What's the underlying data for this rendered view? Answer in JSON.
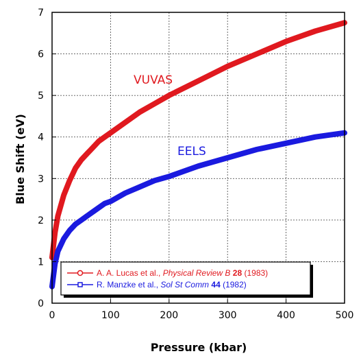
{
  "chart_data": {
    "type": "line",
    "title": "",
    "xlabel": "Pressure (kbar)",
    "ylabel": "Blue Shift (eV)",
    "xlim": [
      0,
      500
    ],
    "ylim": [
      0,
      7
    ],
    "xticks": [
      0,
      100,
      200,
      300,
      400,
      500
    ],
    "yticks": [
      0,
      1,
      2,
      3,
      4,
      5,
      6,
      7
    ],
    "grid": true,
    "legend_position": "bottom-left",
    "series": [
      {
        "name": "VUVAS",
        "color": "#e0191f",
        "x": [
          0,
          5,
          10,
          20,
          30,
          40,
          50,
          60,
          70,
          80,
          90,
          100,
          125,
          150,
          175,
          200,
          250,
          300,
          350,
          400,
          450,
          500
        ],
        "y": [
          1.1,
          1.7,
          2.1,
          2.6,
          2.95,
          3.25,
          3.45,
          3.6,
          3.75,
          3.9,
          4.0,
          4.1,
          4.35,
          4.6,
          4.8,
          5.0,
          5.35,
          5.7,
          6.0,
          6.3,
          6.55,
          6.75
        ]
      },
      {
        "name": "EELS",
        "color": "#1a1adf",
        "x": [
          0,
          5,
          10,
          20,
          30,
          40,
          50,
          60,
          70,
          80,
          90,
          100,
          125,
          150,
          175,
          200,
          250,
          300,
          350,
          400,
          450,
          500
        ],
        "y": [
          0.4,
          0.95,
          1.25,
          1.55,
          1.75,
          1.9,
          2.0,
          2.1,
          2.2,
          2.3,
          2.4,
          2.45,
          2.65,
          2.8,
          2.95,
          3.05,
          3.3,
          3.5,
          3.7,
          3.85,
          4.0,
          4.1
        ]
      }
    ],
    "annotations": [
      {
        "text": "VUVAS",
        "series": 0
      },
      {
        "text": "EELS",
        "series": 1
      }
    ],
    "legend": [
      {
        "plain": "A. A. Lucas et al., ",
        "italic": "Physical Review B ",
        "bold": "28",
        "tail": " (1983)",
        "color": "#e0191f",
        "marker": "circle"
      },
      {
        "plain": "R. Manzke et al., ",
        "italic": "Sol St Comm ",
        "bold": "44",
        "tail": " (1982)",
        "color": "#1a1adf",
        "marker": "square"
      }
    ]
  }
}
